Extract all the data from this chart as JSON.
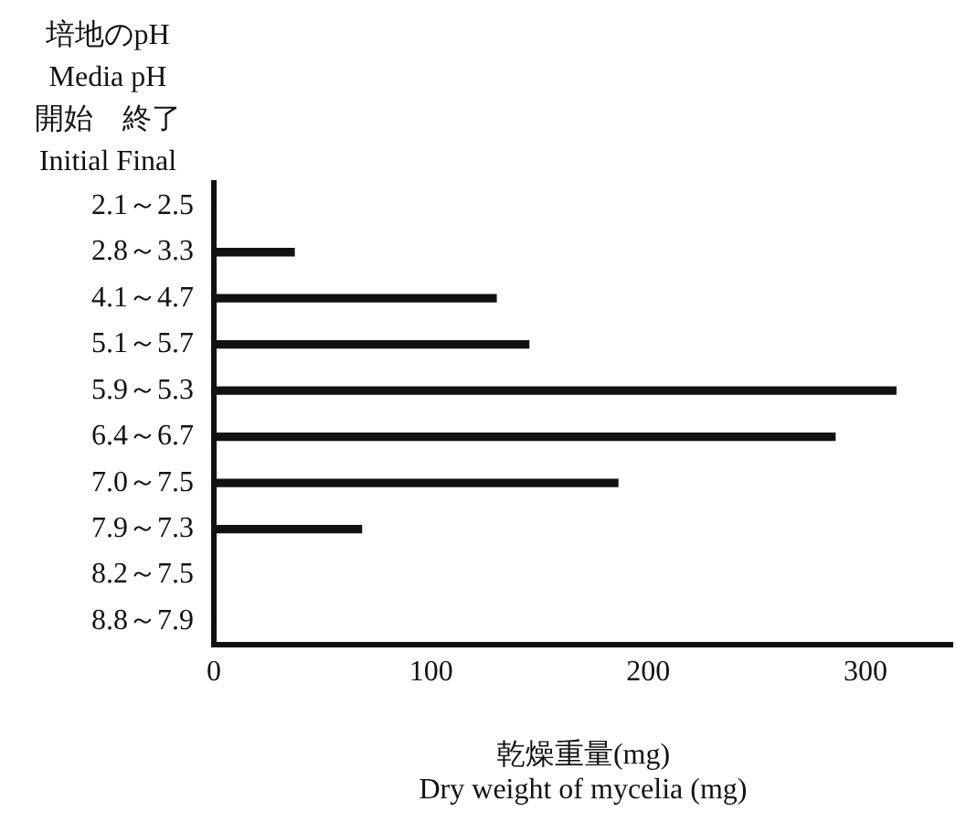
{
  "chart_data": {
    "type": "bar",
    "orientation": "horizontal",
    "ylabel": "培地のpH\nMedia pH\n開始　終了\nInitial Final",
    "xlabel": "乾燥重量(mg)\nDry weight of mycelia (mg)",
    "categories": [
      "2.1～2.5",
      "2.8～3.3",
      "4.1～4.7",
      "5.1～5.7",
      "5.9～5.3",
      "6.4～6.7",
      "7.0～7.5",
      "7.9～7.3",
      "8.2～7.5",
      "8.8～7.9"
    ],
    "values": [
      0,
      37,
      130,
      145,
      314,
      286,
      186,
      68,
      0,
      0
    ],
    "color": "#111111",
    "xlim": [
      0,
      340
    ],
    "xticks": [
      0,
      100,
      200,
      300
    ],
    "grid": false,
    "legend": false
  }
}
